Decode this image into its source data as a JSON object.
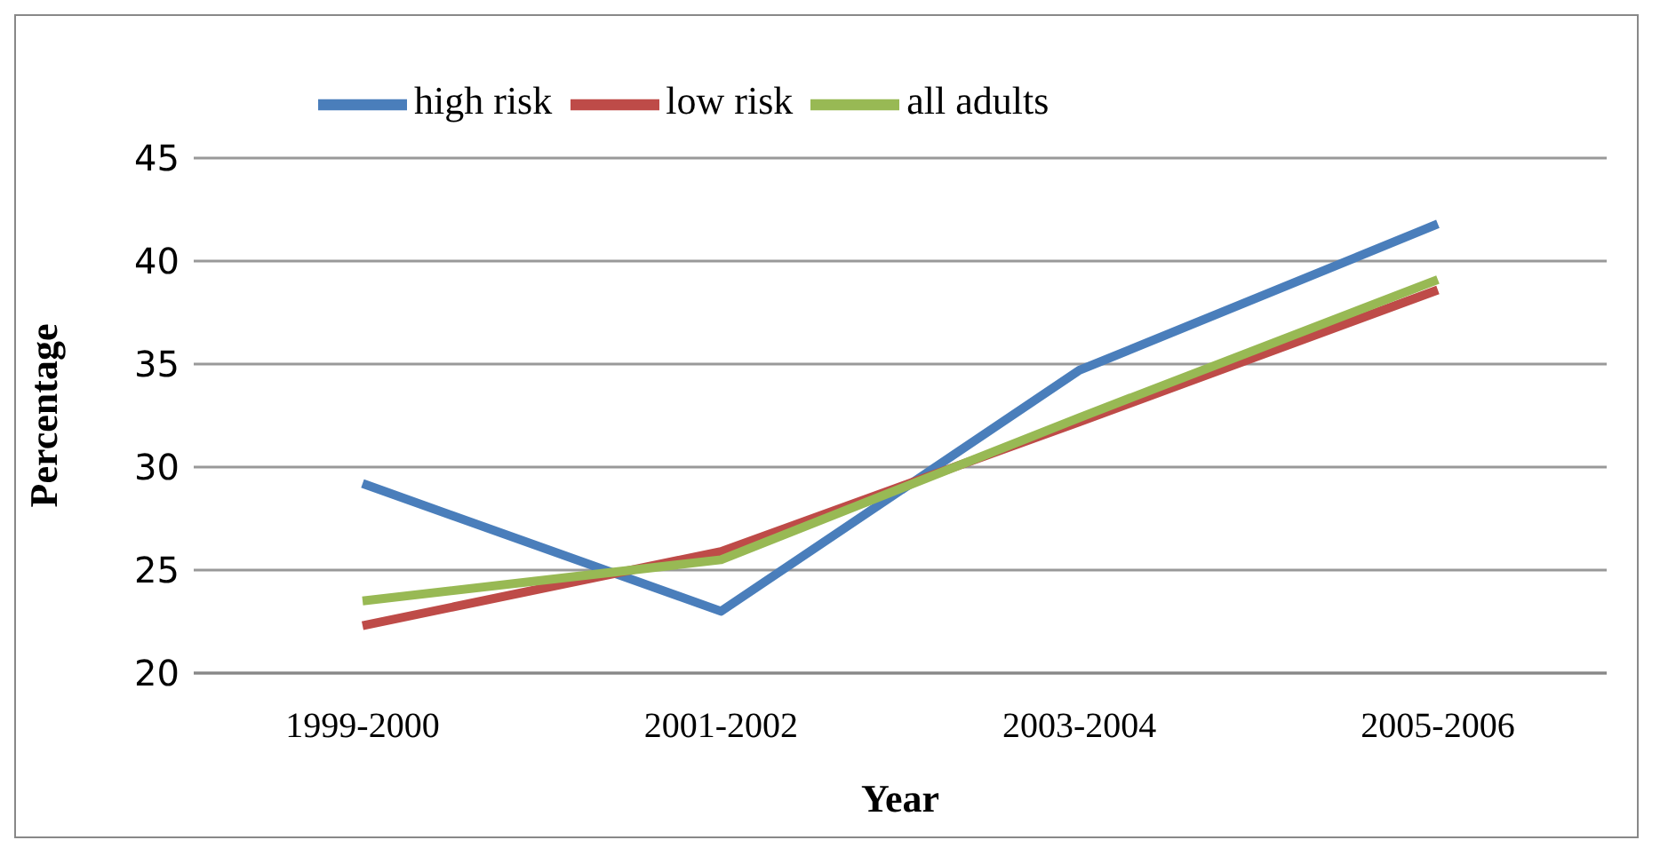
{
  "chart_data": {
    "type": "line",
    "xlabel": "Year",
    "ylabel": "Percentage",
    "categories": [
      "1999-2000",
      "2001-2002",
      "2003-2004",
      "2005-2006"
    ],
    "series": [
      {
        "name": "high risk",
        "color": "#4a7ebb",
        "values": [
          29.2,
          23.0,
          34.7,
          41.8
        ]
      },
      {
        "name": "low risk",
        "color": "#be4b48",
        "values": [
          22.3,
          25.9,
          32.2,
          38.6
        ]
      },
      {
        "name": "all adults",
        "color": "#98b954",
        "values": [
          23.5,
          25.5,
          32.4,
          39.1
        ]
      }
    ],
    "ylim": [
      20,
      45
    ],
    "yticks": [
      20,
      25,
      30,
      35,
      40,
      45
    ],
    "grid": "y",
    "legend": "top left",
    "marker": "none",
    "line_style": "solid"
  }
}
